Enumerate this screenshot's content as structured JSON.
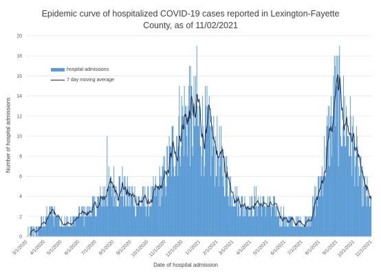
{
  "chart_data": {
    "type": "bar",
    "title_line1": "Epidemic curve of hospitalized COVID-19 cases reported in Lexington-Fayette",
    "title_line2": "County, as of 11/02/2021",
    "xlabel": "Date of hospital admission",
    "ylabel": "Number of hospital admissions",
    "ylim": [
      0,
      20
    ],
    "yticks": [
      "0",
      "2",
      "4",
      "6",
      "8",
      "10",
      "12",
      "14",
      "16",
      "18",
      "20"
    ],
    "x_start": "3/1/2020",
    "x_end": "11/2/2021",
    "xticks": [
      "3/1/2020",
      "4/1/2020",
      "5/1/2020",
      "6/1/2020",
      "7/1/2020",
      "8/1/2020",
      "9/1/2020",
      "10/1/2020",
      "11/1/2020",
      "12/1/2020",
      "1/1/2021",
      "2/1/2021",
      "3/1/2021",
      "4/1/2021",
      "5/1/2021",
      "6/1/2021",
      "7/1/2021",
      "8/1/2021",
      "9/1/2021",
      "10/1/2021",
      "11/1/2021"
    ],
    "bar_color": "#5B9BD5",
    "line_color": "#1F2D44",
    "legend_placement": "upper-left",
    "series": [
      {
        "name": "hospital admissions",
        "kind": "bar",
        "trend_points": [
          {
            "x": "3/1/2020",
            "y": 0
          },
          {
            "x": "3/15/2020",
            "y": 0.5
          },
          {
            "x": "4/1/2020",
            "y": 1.5
          },
          {
            "x": "4/15/2020",
            "y": 2.5
          },
          {
            "x": "5/1/2020",
            "y": 1.5
          },
          {
            "x": "5/15/2020",
            "y": 1.2
          },
          {
            "x": "6/1/2020",
            "y": 2.0
          },
          {
            "x": "6/15/2020",
            "y": 2.5
          },
          {
            "x": "7/1/2020",
            "y": 3.0
          },
          {
            "x": "7/15/2020",
            "y": 4.0
          },
          {
            "x": "8/1/2020",
            "y": 5.0
          },
          {
            "x": "8/15/2020",
            "y": 5.0
          },
          {
            "x": "9/1/2020",
            "y": 4.0
          },
          {
            "x": "9/15/2020",
            "y": 3.5
          },
          {
            "x": "10/1/2020",
            "y": 3.5
          },
          {
            "x": "10/15/2020",
            "y": 4.0
          },
          {
            "x": "11/1/2020",
            "y": 6.0
          },
          {
            "x": "11/15/2020",
            "y": 8.5
          },
          {
            "x": "12/1/2020",
            "y": 11.5
          },
          {
            "x": "12/15/2020",
            "y": 12.0
          },
          {
            "x": "1/1/2021",
            "y": 11.0
          },
          {
            "x": "1/15/2021",
            "y": 10.5
          },
          {
            "x": "2/1/2021",
            "y": 8.5
          },
          {
            "x": "2/15/2021",
            "y": 6.5
          },
          {
            "x": "3/1/2021",
            "y": 4.5
          },
          {
            "x": "3/15/2021",
            "y": 3.5
          },
          {
            "x": "4/1/2021",
            "y": 3.0
          },
          {
            "x": "4/15/2021",
            "y": 3.5
          },
          {
            "x": "5/1/2021",
            "y": 3.0
          },
          {
            "x": "5/15/2021",
            "y": 2.5
          },
          {
            "x": "6/1/2021",
            "y": 1.8
          },
          {
            "x": "6/15/2021",
            "y": 1.3
          },
          {
            "x": "7/1/2021",
            "y": 1.2
          },
          {
            "x": "7/15/2021",
            "y": 2.0
          },
          {
            "x": "8/1/2021",
            "y": 4.5
          },
          {
            "x": "8/15/2021",
            "y": 9.0
          },
          {
            "x": "9/1/2021",
            "y": 13.5
          },
          {
            "x": "9/15/2021",
            "y": 12.0
          },
          {
            "x": "10/1/2021",
            "y": 9.0
          },
          {
            "x": "10/15/2021",
            "y": 5.5
          },
          {
            "x": "11/2/2021",
            "y": 3.0
          }
        ],
        "peaks": [
          {
            "x": "12/28/2020",
            "y": 19
          },
          {
            "x": "8/29/2021",
            "y": 18
          },
          {
            "x": "12/15/2020",
            "y": 17
          },
          {
            "x": "7/22/2020",
            "y": 10
          }
        ]
      },
      {
        "name": "7 day moving average",
        "kind": "line"
      }
    ]
  }
}
